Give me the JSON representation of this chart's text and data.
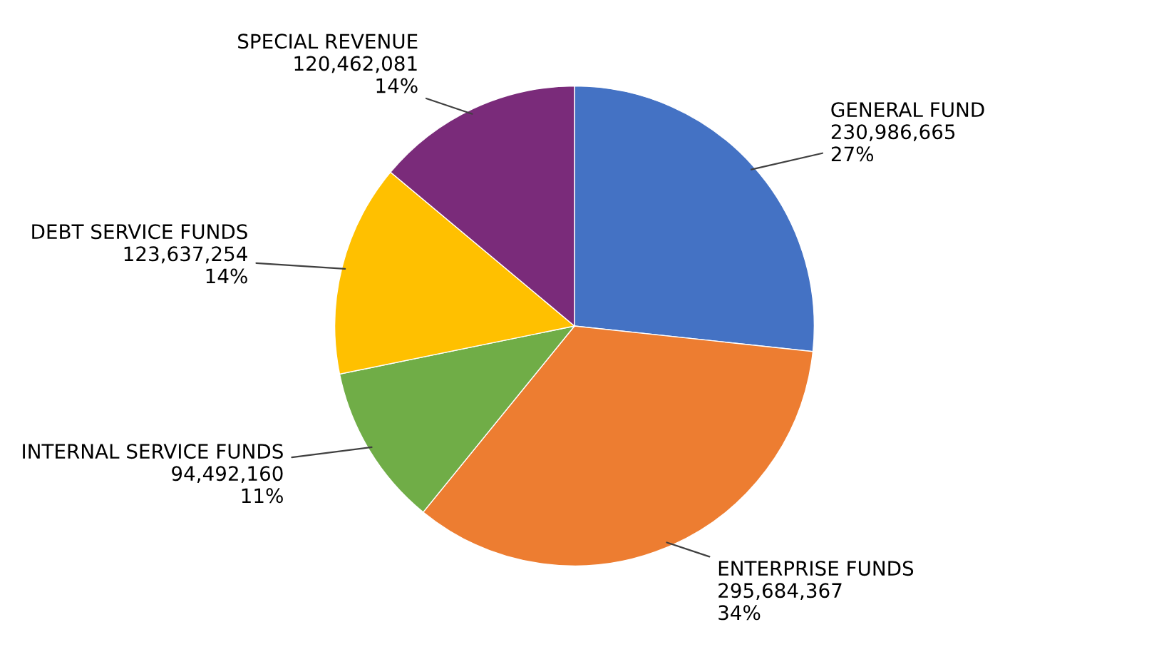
{
  "chart_data": {
    "type": "pie",
    "categories": [
      "GENERAL FUND",
      "ENTERPRISE FUNDS",
      "INTERNAL SERVICE FUNDS",
      "DEBT SERVICE FUNDS",
      "SPECIAL REVENUE"
    ],
    "values": [
      230986665,
      295684367,
      94492160,
      123637254,
      120462081
    ],
    "colors": [
      "#4472c4",
      "#ed7d31",
      "#70ad47",
      "#ffc000",
      "#7a2b7a"
    ],
    "value_labels": [
      "230,986,665\n27%",
      "295,684,367\n34%",
      "94,492,160\n11%",
      "123,637,254\n14%",
      "120,462,081\n14%"
    ]
  }
}
